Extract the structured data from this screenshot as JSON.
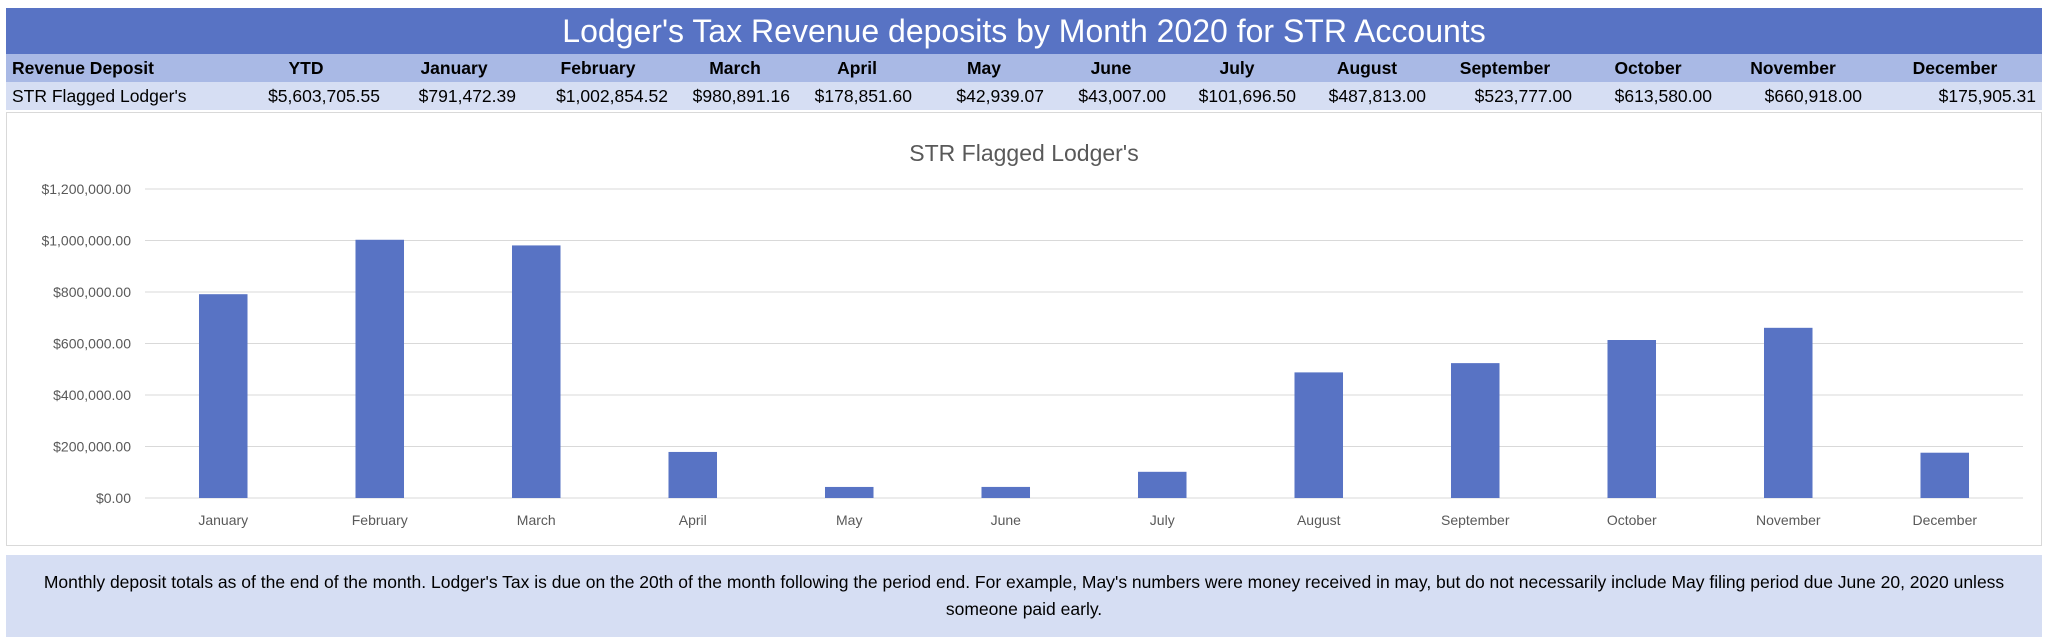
{
  "title": "Lodger's Tax Revenue deposits by Month 2020 for STR Accounts",
  "table": {
    "headers": [
      "Revenue Deposit",
      "YTD",
      "January",
      "February",
      "March",
      "April",
      "May",
      "June",
      "July",
      "August",
      "September",
      "October",
      "November",
      "December"
    ],
    "row": [
      "STR Flagged Lodger's",
      "$5,603,705.55",
      "$791,472.39",
      "$1,002,854.52",
      "$980,891.16",
      "$178,851.60",
      "$42,939.07",
      "$43,007.00",
      "$101,696.50",
      "$487,813.00",
      "$523,777.00",
      "$613,580.00",
      "$660,918.00",
      "$175,905.31"
    ]
  },
  "note": "Monthly deposit totals as of the end of the month.  Lodger's Tax is due on the 20th of the month following the period end.  For example, May's numbers were money received in may, but do not necessarily include May filing period due June 20, 2020 unless someone paid early.",
  "colors": {
    "bar": "#5873c4",
    "title_bar": "#5873c4",
    "header_row": "#a9b9e5",
    "data_row": "#d6def3",
    "gridline": "#d9d9d9"
  },
  "chart_data": {
    "type": "bar",
    "title": "STR Flagged Lodger's",
    "categories": [
      "January",
      "February",
      "March",
      "April",
      "May",
      "June",
      "July",
      "August",
      "September",
      "October",
      "November",
      "December"
    ],
    "values": [
      791472.39,
      1002854.52,
      980891.16,
      178851.6,
      42939.07,
      43007.0,
      101696.5,
      487813.0,
      523777.0,
      613580.0,
      660918.0,
      175905.31
    ],
    "xlabel": "",
    "ylabel": "",
    "ylim": [
      0,
      1200000
    ],
    "yticks": [
      0,
      200000,
      400000,
      600000,
      800000,
      1000000,
      1200000
    ],
    "ytick_labels": [
      "$0.00",
      "$200,000.00",
      "$400,000.00",
      "$600,000.00",
      "$800,000.00",
      "$1,000,000.00",
      "$1,200,000.00"
    ],
    "grid": true,
    "legend": "none"
  }
}
